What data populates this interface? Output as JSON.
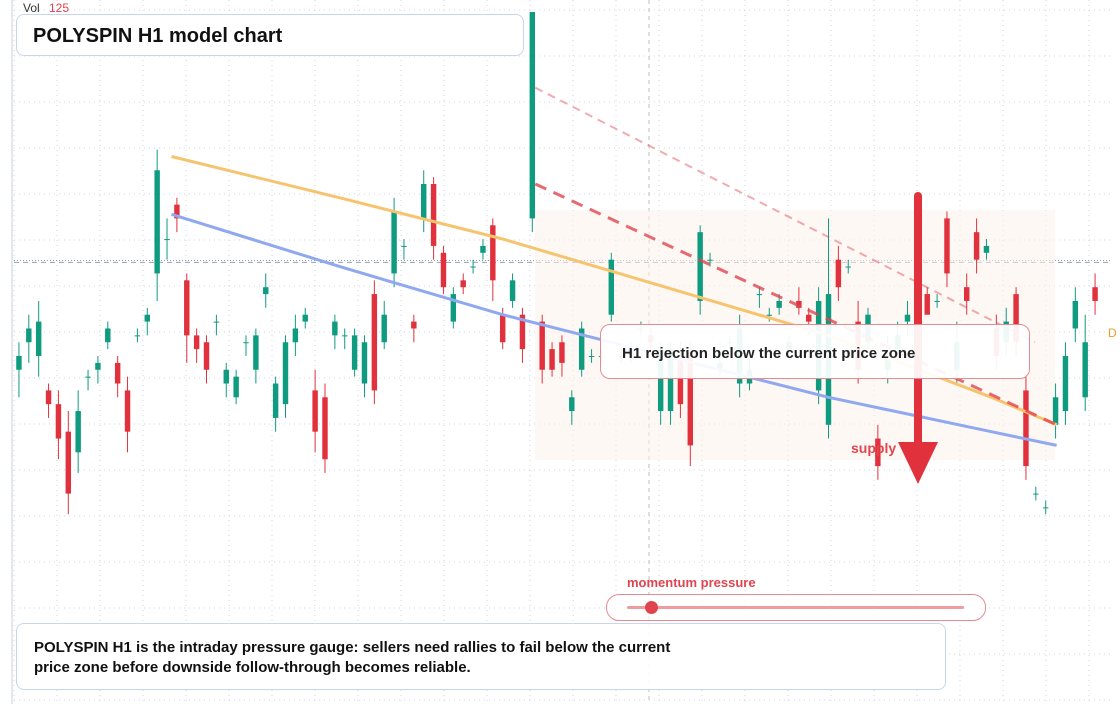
{
  "chart_data": {
    "type": "candlestick",
    "title": "POLYSPIN H1 model chart",
    "volume_label": "Vol",
    "volume_value": "125",
    "price_range": [
      0,
      100
    ],
    "grid": true,
    "candles": [
      [
        48,
        50,
        52,
        44
      ],
      [
        52,
        54,
        56,
        49
      ],
      [
        50,
        55,
        58,
        47
      ],
      [
        45,
        43,
        46,
        41
      ],
      [
        43,
        38,
        45,
        35
      ],
      [
        39,
        30,
        42,
        27
      ],
      [
        36,
        42,
        45,
        33
      ],
      [
        47,
        47,
        48,
        45
      ],
      [
        48,
        49,
        50,
        46
      ],
      [
        52,
        54,
        55,
        51
      ],
      [
        49,
        46,
        50,
        44
      ],
      [
        45,
        39,
        47,
        36
      ],
      [
        53,
        53,
        54,
        52
      ],
      [
        55,
        56,
        57,
        53
      ],
      [
        62,
        77,
        80,
        58
      ],
      [
        67,
        67,
        70,
        64
      ],
      [
        72,
        70,
        73,
        68
      ],
      [
        61,
        53,
        62,
        49
      ],
      [
        53,
        51,
        54,
        49
      ],
      [
        52,
        48,
        53,
        46
      ],
      [
        55,
        55,
        56,
        53
      ],
      [
        46,
        48,
        49,
        44
      ],
      [
        44,
        47,
        48,
        43
      ],
      [
        52,
        52,
        53,
        50
      ],
      [
        48,
        53,
        54,
        46
      ],
      [
        59,
        60,
        62,
        57
      ],
      [
        41,
        46,
        47,
        39
      ],
      [
        43,
        52,
        53,
        41
      ],
      [
        52,
        54,
        56,
        50
      ],
      [
        55,
        56,
        57,
        54
      ],
      [
        45,
        39,
        48,
        36
      ],
      [
        44,
        35,
        46,
        33
      ],
      [
        53,
        55,
        56,
        51
      ],
      [
        53,
        53,
        54,
        51
      ],
      [
        48,
        53,
        54,
        47
      ],
      [
        46,
        52,
        53,
        44
      ],
      [
        59,
        45,
        61,
        43
      ],
      [
        52,
        56,
        58,
        51
      ],
      [
        62,
        71,
        73,
        60
      ],
      [
        66,
        66,
        67,
        64
      ],
      [
        55,
        54,
        56,
        52
      ],
      [
        70,
        75,
        77,
        68
      ],
      [
        75,
        66,
        76,
        64
      ],
      [
        65,
        60,
        66,
        59
      ],
      [
        55,
        59,
        60,
        54
      ],
      [
        61,
        60,
        62,
        59
      ],
      [
        63,
        63,
        64,
        62
      ],
      [
        65,
        66,
        67,
        64
      ],
      [
        69,
        61,
        70,
        58
      ],
      [
        56,
        52,
        57,
        51
      ],
      [
        58,
        61,
        62,
        57
      ],
      [
        56,
        51,
        57,
        49
      ],
      [
        70,
        100,
        100,
        68
      ],
      [
        55,
        48,
        56,
        46
      ],
      [
        51,
        48,
        52,
        47
      ],
      [
        52,
        49,
        53,
        47
      ],
      [
        42,
        44,
        45,
        40
      ],
      [
        48,
        54,
        55,
        47
      ],
      [
        50,
        50,
        51,
        49
      ],
      [
        50,
        50,
        51,
        49
      ],
      [
        56,
        64,
        65,
        55
      ],
      [
        50,
        50,
        51,
        49
      ],
      [
        50,
        51,
        52,
        49
      ],
      [
        54,
        54,
        55,
        53
      ],
      [
        53,
        52,
        54,
        51
      ],
      [
        42,
        51,
        52,
        40
      ],
      [
        42,
        51,
        52,
        40
      ],
      [
        50,
        43,
        52,
        41
      ],
      [
        50,
        37,
        52,
        34
      ],
      [
        58,
        68,
        69,
        56
      ],
      [
        64,
        64,
        65,
        63
      ],
      [
        48,
        49,
        52,
        47
      ],
      [
        52,
        52,
        53,
        51
      ],
      [
        46,
        54,
        56,
        44
      ],
      [
        46,
        48,
        50,
        45
      ],
      [
        59,
        59,
        60,
        57
      ],
      [
        56,
        56,
        57,
        55
      ],
      [
        57,
        58,
        59,
        56
      ],
      [
        51,
        52,
        53,
        50
      ],
      [
        58,
        57,
        60,
        56
      ],
      [
        56,
        55,
        57,
        53
      ],
      [
        45,
        58,
        60,
        43
      ],
      [
        40,
        59,
        70,
        38
      ],
      [
        64,
        60,
        66,
        58
      ],
      [
        63,
        63,
        64,
        62
      ],
      [
        55,
        48,
        58,
        46
      ],
      [
        52,
        56,
        57,
        50
      ],
      [
        38,
        34,
        40,
        32
      ],
      [
        48,
        50,
        53,
        46
      ],
      [
        51,
        53,
        55,
        49
      ],
      [
        55,
        56,
        58,
        53
      ],
      [
        60,
        54,
        61,
        52
      ],
      [
        59,
        56,
        60,
        57
      ],
      [
        58,
        58,
        59,
        57
      ],
      [
        70,
        62,
        71,
        60
      ],
      [
        48,
        52,
        55,
        46
      ],
      [
        60,
        58,
        62,
        56
      ],
      [
        68,
        64,
        70,
        62
      ],
      [
        65,
        66,
        67,
        64
      ],
      [
        54,
        50,
        56,
        48
      ],
      [
        52,
        55,
        57,
        50
      ],
      [
        59,
        52,
        60,
        50
      ],
      [
        45,
        34,
        47,
        32
      ],
      [
        30,
        30,
        31,
        29
      ],
      [
        28,
        28,
        29,
        27
      ],
      [
        40,
        44,
        46,
        38
      ],
      [
        42,
        50,
        52,
        40
      ],
      [
        54,
        58,
        60,
        52
      ],
      [
        44,
        52,
        56,
        42
      ],
      [
        60,
        58,
        62,
        56
      ]
    ],
    "ema_blue": [
      [
        0.145,
        70.6
      ],
      [
        0.3,
        63
      ],
      [
        0.45,
        56
      ],
      [
        0.6,
        50
      ],
      [
        0.75,
        44
      ],
      [
        0.9,
        39
      ],
      [
        0.96,
        37
      ]
    ],
    "ema_orange": [
      [
        0.145,
        79
      ],
      [
        0.3,
        73
      ],
      [
        0.45,
        67
      ],
      [
        0.6,
        60
      ],
      [
        0.75,
        53
      ],
      [
        0.9,
        44
      ],
      [
        0.96,
        40
      ]
    ],
    "supply_line_heavy": [
      [
        0.48,
        75
      ],
      [
        0.96,
        40
      ]
    ],
    "supply_line_light": [
      [
        0.48,
        89
      ],
      [
        0.94,
        52
      ]
    ],
    "resistance_level": 62,
    "current_price_level": 63.6
  },
  "callout": {
    "text": "H1 rejection below the current price zone"
  },
  "supply_label": "supply",
  "gauge": {
    "label": "momentum pressure",
    "value": 0.07
  },
  "caption": {
    "text": "POLYSPIN H1 is the intraday pressure gauge: sellers need rallies to fail below the current price zone before downside follow-through becomes reliable."
  },
  "edge_label": "D",
  "colors": {
    "bull": "#0f9b7f",
    "bear": "#e0313c",
    "ema_blue": "#8fa8f0",
    "ema_orange": "#f6c46e",
    "supply": "#e0454f",
    "grid": "#cfd6e0"
  }
}
